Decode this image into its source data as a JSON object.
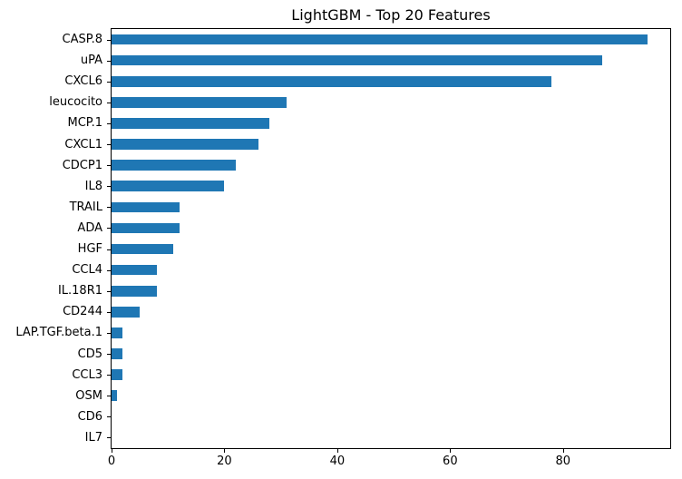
{
  "figure": {
    "title": "LightGBM - Top 20 Features"
  },
  "chart_data": {
    "type": "bar",
    "orientation": "horizontal",
    "title": "LightGBM - Top 20 Features",
    "categories": [
      "CASP.8",
      "uPA",
      "CXCL6",
      "leucocito",
      "MCP.1",
      "CXCL1",
      "CDCP1",
      "IL8",
      "TRAIL",
      "ADA",
      "HGF",
      "CCL4",
      "IL.18R1",
      "CD244",
      "LAP.TGF.beta.1",
      "CD5",
      "CCL3",
      "OSM",
      "CD6",
      "IL7"
    ],
    "values": [
      95,
      87,
      78,
      31,
      28,
      26,
      22,
      20,
      12,
      12,
      11,
      8,
      8,
      5,
      2,
      2,
      2,
      1,
      0,
      0
    ],
    "xlabel": "",
    "ylabel": "",
    "xlim": [
      0,
      99
    ],
    "x_ticks": [
      0,
      20,
      40,
      60,
      80
    ],
    "grid": false,
    "legend_position": "none",
    "bar_color": "#1f77b4",
    "axis_color": "#000000",
    "text_color": "#000000",
    "background_color": "#ffffff"
  }
}
